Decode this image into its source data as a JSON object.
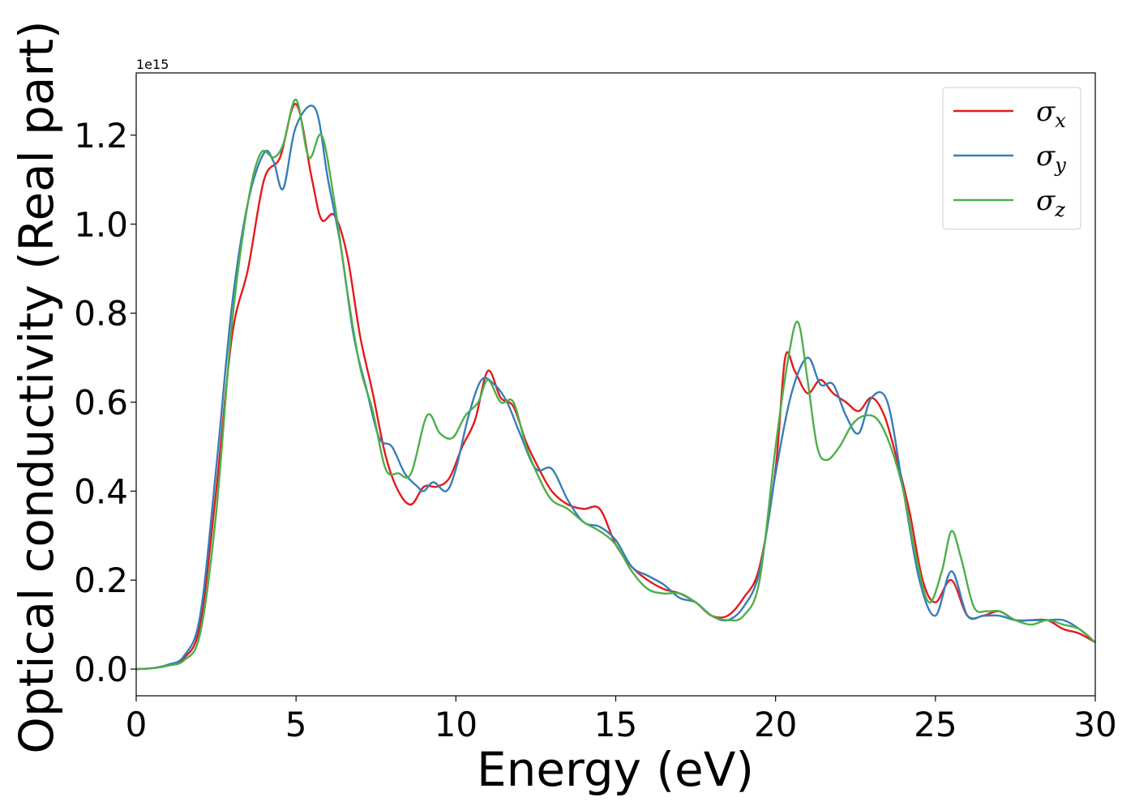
{
  "chart_data": {
    "type": "line",
    "xlabel": "Energy (eV)",
    "ylabel": "Optical conductivity (Real part)",
    "offset_text": "1e15",
    "scale": 1000000000000000.0,
    "xlim": [
      0,
      30
    ],
    "ylim": [
      -0.06,
      1.34
    ],
    "xticks": [
      0,
      5,
      10,
      15,
      20,
      25,
      30
    ],
    "xtick_labels": [
      "0",
      "5",
      "10",
      "15",
      "20",
      "25",
      "30"
    ],
    "yticks": [
      0.0,
      0.2,
      0.4,
      0.6,
      0.8,
      1.0,
      1.2
    ],
    "ytick_labels": [
      "0.0",
      "0.2",
      "0.4",
      "0.6",
      "0.8",
      "1.0",
      "1.2"
    ],
    "grid": false,
    "legend_position": "top-right",
    "series": [
      {
        "name": "σx",
        "symbol": "σ",
        "subscript": "x",
        "color": "#e41a1c",
        "x": [
          0,
          0.5,
          1,
          1.5,
          2,
          2.5,
          3,
          3.5,
          4,
          4.5,
          5,
          5.5,
          5.8,
          6.2,
          6.6,
          7,
          7.4,
          7.8,
          8.2,
          8.6,
          9,
          9.4,
          9.8,
          10.2,
          10.6,
          11,
          11.4,
          11.8,
          12.2,
          12.6,
          13,
          13.5,
          14,
          14.5,
          15,
          15.5,
          16,
          16.5,
          17,
          17.5,
          18,
          18.5,
          19,
          19.5,
          20,
          20.3,
          20.6,
          21,
          21.4,
          21.8,
          22.2,
          22.6,
          23,
          23.4,
          23.8,
          24.2,
          24.6,
          25,
          25.5,
          26,
          26.5,
          27,
          27.5,
          28,
          28.5,
          29,
          29.5,
          30
        ],
        "y": [
          0,
          0.002,
          0.008,
          0.025,
          0.1,
          0.4,
          0.75,
          0.9,
          1.1,
          1.15,
          1.27,
          1.1,
          1.01,
          1.02,
          0.93,
          0.75,
          0.62,
          0.48,
          0.4,
          0.37,
          0.41,
          0.41,
          0.43,
          0.5,
          0.56,
          0.67,
          0.61,
          0.59,
          0.51,
          0.45,
          0.4,
          0.37,
          0.36,
          0.36,
          0.28,
          0.23,
          0.2,
          0.18,
          0.17,
          0.15,
          0.12,
          0.12,
          0.16,
          0.23,
          0.45,
          0.7,
          0.67,
          0.62,
          0.65,
          0.62,
          0.6,
          0.58,
          0.61,
          0.57,
          0.47,
          0.35,
          0.2,
          0.15,
          0.2,
          0.12,
          0.12,
          0.13,
          0.11,
          0.11,
          0.11,
          0.09,
          0.08,
          0.06
        ]
      },
      {
        "name": "σy",
        "symbol": "σ",
        "subscript": "y",
        "color": "#377eb8",
        "x": [
          0,
          0.5,
          1,
          1.5,
          2,
          2.5,
          3,
          3.5,
          4,
          4.3,
          4.6,
          5,
          5.6,
          6,
          6.4,
          6.8,
          7.2,
          7.6,
          8,
          8.4,
          8.8,
          9,
          9.3,
          9.7,
          10,
          10.4,
          10.8,
          11.2,
          11.6,
          12,
          12.5,
          13,
          13.5,
          14,
          14.5,
          15,
          15.5,
          16,
          16.5,
          17,
          17.5,
          18,
          18.5,
          19,
          19.5,
          20,
          20.5,
          21,
          21.4,
          21.8,
          22.2,
          22.6,
          23,
          23.5,
          24,
          24.5,
          25,
          25.5,
          26,
          26.5,
          27,
          27.5,
          28,
          28.5,
          29,
          29.5,
          30
        ],
        "y": [
          0,
          0.002,
          0.01,
          0.03,
          0.12,
          0.45,
          0.82,
          1.05,
          1.16,
          1.14,
          1.08,
          1.22,
          1.26,
          1.1,
          0.95,
          0.75,
          0.63,
          0.52,
          0.5,
          0.44,
          0.41,
          0.4,
          0.42,
          0.4,
          0.45,
          0.57,
          0.65,
          0.64,
          0.6,
          0.53,
          0.45,
          0.45,
          0.38,
          0.33,
          0.32,
          0.29,
          0.23,
          0.21,
          0.19,
          0.16,
          0.15,
          0.12,
          0.11,
          0.14,
          0.22,
          0.44,
          0.62,
          0.7,
          0.64,
          0.64,
          0.57,
          0.53,
          0.61,
          0.6,
          0.4,
          0.2,
          0.12,
          0.22,
          0.12,
          0.12,
          0.12,
          0.11,
          0.11,
          0.11,
          0.11,
          0.09,
          0.06
        ]
      },
      {
        "name": "σz",
        "symbol": "σ",
        "subscript": "z",
        "color": "#4daf4a",
        "x": [
          0,
          0.5,
          1,
          1.5,
          2,
          2.5,
          3,
          3.5,
          3.9,
          4.3,
          4.6,
          5,
          5.4,
          5.8,
          6.2,
          6.6,
          7,
          7.4,
          7.8,
          8.2,
          8.6,
          9.1,
          9.5,
          9.9,
          10.3,
          10.7,
          11,
          11.4,
          11.8,
          12.2,
          12.6,
          13,
          13.5,
          14,
          14.5,
          15,
          15.5,
          16,
          16.5,
          17,
          17.5,
          18,
          18.5,
          19,
          19.5,
          20,
          20.4,
          20.7,
          21,
          21.3,
          21.6,
          22,
          22.4,
          22.8,
          23.2,
          23.6,
          24,
          24.4,
          24.8,
          25.2,
          25.5,
          25.8,
          26.2,
          26.6,
          27,
          27.5,
          28,
          28.5,
          29,
          29.5,
          30
        ],
        "y": [
          0,
          0.002,
          0.008,
          0.02,
          0.08,
          0.35,
          0.78,
          1.05,
          1.16,
          1.15,
          1.18,
          1.28,
          1.15,
          1.2,
          1.05,
          0.85,
          0.68,
          0.58,
          0.45,
          0.44,
          0.44,
          0.57,
          0.53,
          0.52,
          0.57,
          0.6,
          0.65,
          0.6,
          0.6,
          0.5,
          0.43,
          0.38,
          0.36,
          0.33,
          0.31,
          0.28,
          0.22,
          0.18,
          0.17,
          0.17,
          0.15,
          0.12,
          0.11,
          0.12,
          0.2,
          0.5,
          0.7,
          0.78,
          0.65,
          0.5,
          0.47,
          0.5,
          0.55,
          0.57,
          0.56,
          0.5,
          0.4,
          0.25,
          0.15,
          0.22,
          0.31,
          0.25,
          0.14,
          0.13,
          0.13,
          0.11,
          0.1,
          0.11,
          0.1,
          0.09,
          0.06
        ]
      }
    ]
  }
}
